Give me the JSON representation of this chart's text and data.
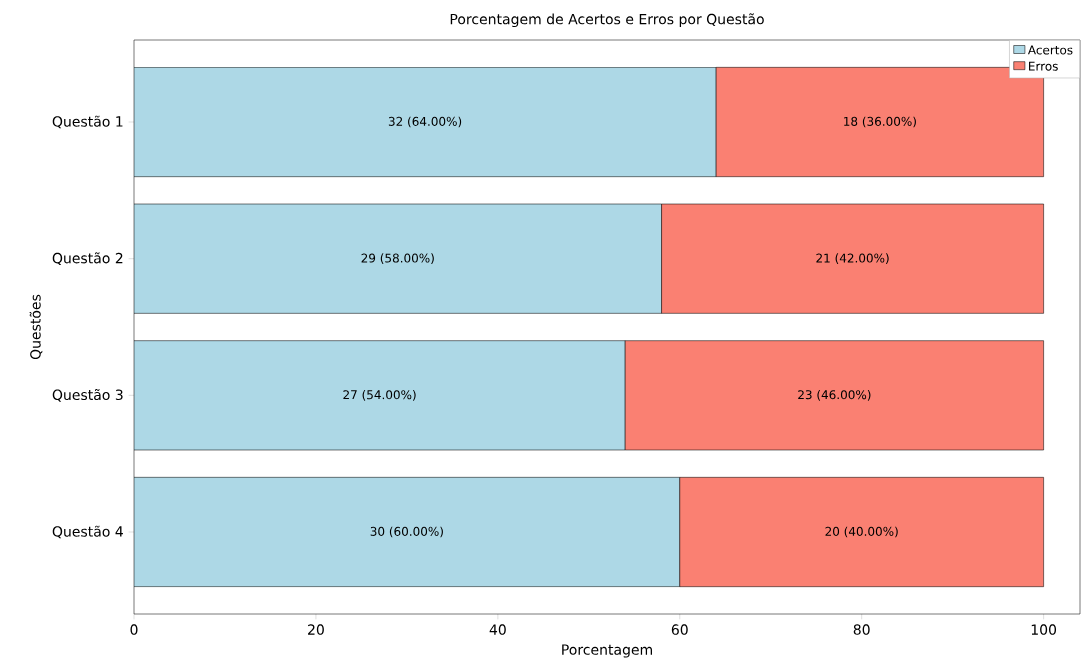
{
  "chart_data": {
    "type": "bar",
    "orientation": "horizontal",
    "stacked": true,
    "title": "Porcentagem de Acertos e Erros por Questão",
    "xlabel": "Porcentagem",
    "ylabel": "Questões",
    "categories": [
      "Questão 1",
      "Questão 2",
      "Questão 3",
      "Questão 4"
    ],
    "series": [
      {
        "name": "Acertos",
        "color": "#add8e6",
        "values": [
          64,
          58,
          54,
          60
        ],
        "value_labels": [
          "32 (64.00%)",
          "29 (58.00%)",
          "27 (54.00%)",
          "30 (60.00%)"
        ]
      },
      {
        "name": "Erros",
        "color": "#fa8072",
        "values": [
          36,
          42,
          46,
          40
        ],
        "value_labels": [
          "18 (36.00%)",
          "21 (42.00%)",
          "23 (46.00%)",
          "20 (40.00%)"
        ]
      }
    ],
    "xlim": [
      0,
      104
    ],
    "xticks": [
      0,
      20,
      40,
      60,
      80,
      100
    ],
    "grid": false,
    "legend": "top right"
  }
}
